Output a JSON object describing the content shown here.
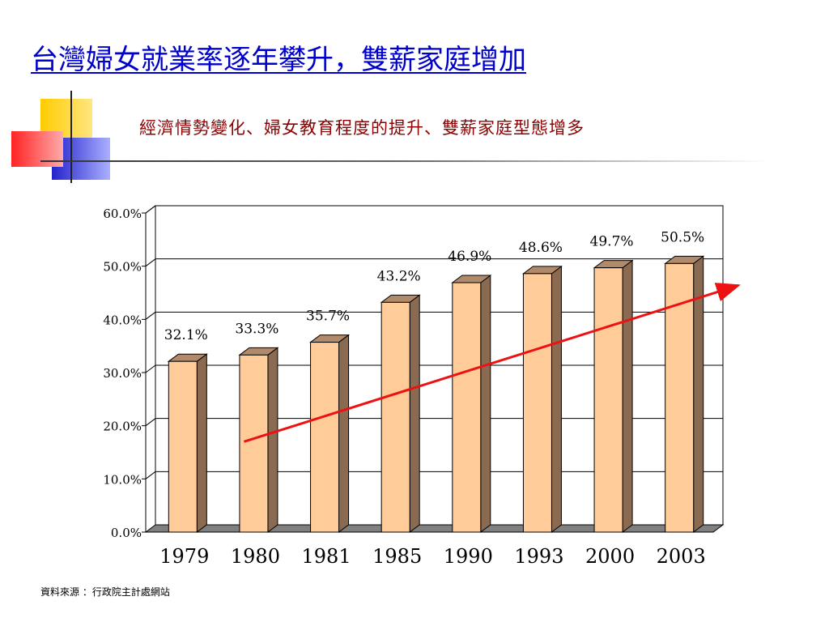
{
  "slide": {
    "title": "台灣婦女就業率逐年攀升，雙薪家庭增加",
    "subtitle": "經濟情勢變化、婦女教育程度的提升、雙薪家庭型態增多",
    "source": "資料來源 ：行政院主計處網站"
  },
  "colors": {
    "title": "#0000cc",
    "subtitle": "#8b0000",
    "bar_front": "#ffcc99",
    "bar_side": "#8a6a50",
    "bar_top": "#b08a6a",
    "trend_arrow": "#ee1111",
    "deco_yellow": "#ffcc00",
    "deco_red": "#ff3333",
    "deco_blue": "#3333cc"
  },
  "chart_data": {
    "type": "bar",
    "categories": [
      "1979",
      "1980",
      "1981",
      "1985",
      "1990",
      "1993",
      "2000",
      "2003"
    ],
    "values": [
      32.1,
      33.3,
      35.7,
      43.2,
      46.9,
      48.6,
      49.7,
      50.5
    ],
    "data_labels": [
      "32.1%",
      "33.3%",
      "35.7%",
      "43.2%",
      "46.9%",
      "48.6%",
      "49.7%",
      "50.5%"
    ],
    "ylim": [
      0,
      60
    ],
    "yticks": [
      "0.0%",
      "10.0%",
      "20.0%",
      "30.0%",
      "40.0%",
      "50.0%",
      "60.0%"
    ],
    "grid": true,
    "three_d": true,
    "trend_arrow": true
  }
}
